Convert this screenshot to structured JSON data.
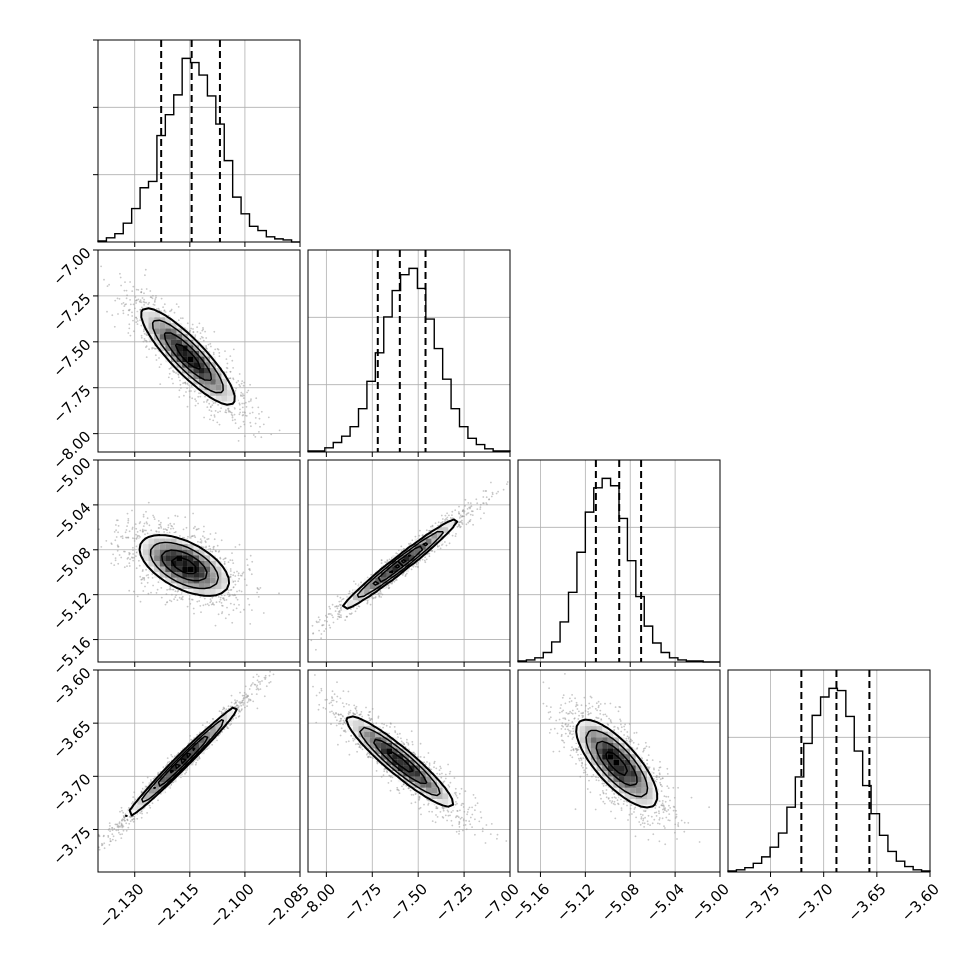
{
  "colors": {
    "line": "#000000",
    "grid": "#b0b0b0",
    "scatter": "#9a9a9a",
    "background": "#ffffff"
  },
  "chart_data": {
    "type": "corner",
    "grid": true,
    "parameters": [
      {
        "range": [
          -2.14,
          -2.085
        ],
        "ticks": [
          -2.13,
          -2.115,
          -2.1,
          -2.085
        ],
        "tick_labels": [
          "−2.130",
          "−2.115",
          "−2.100",
          "−2.085"
        ]
      },
      {
        "range": [
          -8.1,
          -7.0
        ],
        "ticks": [
          -8.0,
          -7.75,
          -7.5,
          -7.25,
          -7.0
        ],
        "tick_labels": [
          "−8.00",
          "−7.75",
          "−7.50",
          "−7.25",
          "−7.00"
        ]
      },
      {
        "range": [
          -5.18,
          -5.0
        ],
        "ticks": [
          -5.16,
          -5.12,
          -5.08,
          -5.04,
          -5.0
        ],
        "tick_labels": [
          "−5.16",
          "−5.12",
          "−5.08",
          "−5.04",
          "−5.00"
        ]
      },
      {
        "range": [
          -3.79,
          -3.6
        ],
        "ticks": [
          -3.75,
          -3.7,
          -3.65,
          -3.6
        ],
        "tick_labels": [
          "−3.75",
          "−3.70",
          "−3.65",
          "−3.60"
        ]
      }
    ],
    "histograms": [
      {
        "param": 0,
        "quantiles": [
          -2.1228,
          -2.1145,
          -2.1068
        ],
        "counts": [
          1,
          4,
          8,
          18,
          32,
          52,
          58,
          102,
          122,
          141,
          176,
          172,
          160,
          140,
          113,
          78,
          43,
          27,
          15,
          11,
          5,
          3,
          2,
          0
        ]
      },
      {
        "param": 1,
        "quantiles": [
          -7.72,
          -7.6,
          -7.46
        ],
        "counts": [
          1,
          1,
          4,
          9,
          15,
          24,
          41,
          67,
          94,
          128,
          153,
          168,
          174,
          155,
          126,
          98,
          69,
          41,
          24,
          13,
          7,
          3,
          1,
          1
        ]
      },
      {
        "param": 2,
        "quantiles": [
          -5.1106,
          -5.0898,
          -5.0703
        ],
        "counts": [
          1,
          2,
          4,
          9,
          19,
          38,
          66,
          104,
          142,
          165,
          174,
          167,
          136,
          96,
          62,
          34,
          18,
          9,
          4,
          2,
          1,
          1,
          0,
          0
        ]
      },
      {
        "param": 3,
        "quantiles": [
          -3.721,
          -3.688,
          -3.657
        ],
        "counts": [
          1,
          2,
          4,
          8,
          14,
          23,
          36,
          60,
          88,
          119,
          145,
          162,
          170,
          168,
          144,
          112,
          80,
          54,
          34,
          19,
          10,
          5,
          2,
          1
        ]
      }
    ],
    "pair_densities": [
      {
        "x": 0,
        "y": 1,
        "center": [
          -2.1155,
          -7.58
        ],
        "axis_angle_deg": -46,
        "sigma_major": 1.75,
        "sigma_minor": 0.45
      },
      {
        "x": 0,
        "y": 2,
        "center": [
          -2.1165,
          -5.094
        ],
        "axis_angle_deg": -27,
        "sigma_major": 1.3,
        "sigma_minor": 0.62
      },
      {
        "x": 0,
        "y": 3,
        "center": [
          -2.117,
          -3.686
        ],
        "axis_angle_deg": 45,
        "sigma_major": 2.1,
        "sigma_minor": 0.17
      },
      {
        "x": 1,
        "y": 2,
        "center": [
          -7.6,
          -5.093
        ],
        "axis_angle_deg": 38,
        "sigma_major": 2.0,
        "sigma_minor": 0.2
      },
      {
        "x": 1,
        "y": 3,
        "center": [
          -7.6,
          -3.686
        ],
        "axis_angle_deg": -40,
        "sigma_major": 1.85,
        "sigma_minor": 0.35
      },
      {
        "x": 2,
        "y": 3,
        "center": [
          -5.092,
          -3.688
        ],
        "axis_angle_deg": -48,
        "sigma_major": 1.5,
        "sigma_minor": 0.55
      }
    ]
  }
}
